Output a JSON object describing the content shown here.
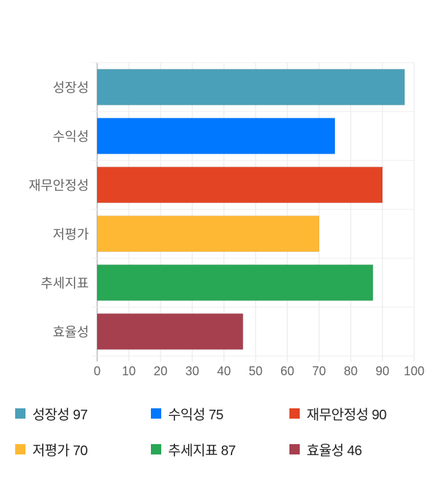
{
  "chart_data": {
    "type": "bar",
    "orientation": "horizontal",
    "categories": [
      "성장성",
      "수익성",
      "재무안정성",
      "저평가",
      "추세지표",
      "효율성"
    ],
    "values": [
      97,
      75,
      90,
      70,
      87,
      46
    ],
    "colors": [
      "#4aa0b8",
      "#0078ff",
      "#e34424",
      "#ffb833",
      "#28a755",
      "#a6404e"
    ],
    "xlim": [
      0,
      100
    ],
    "xticks": [
      "0",
      "10",
      "20",
      "30",
      "40",
      "50",
      "60",
      "70",
      "80",
      "90",
      "100"
    ],
    "grid": true,
    "legend_position": "bottom",
    "legend": [
      "성장성 97",
      "수익성 75",
      "재무안정성 90",
      "저평가 70",
      "추세지표 87",
      "효율성 46"
    ]
  }
}
